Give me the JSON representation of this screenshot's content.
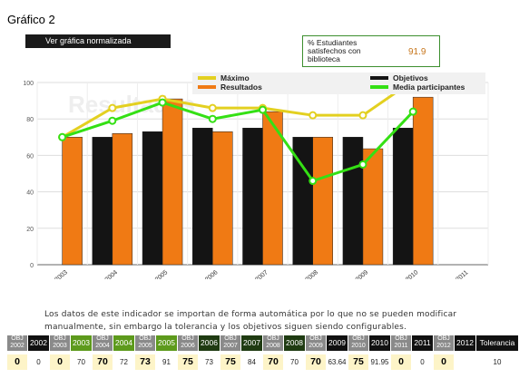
{
  "page": {
    "title": "Gráfico 2",
    "normalize_button": "Ver gráfica normalizada",
    "kpi_label": "% Estudiantes satisfechos con biblioteca",
    "kpi_value": "91.9",
    "note": "Los datos de este indicador se importan de forma automática por lo que no se pueden modificar manualmente, sin embargo la tolerancia y los objetivos siguen siendo configurables."
  },
  "chart_data": {
    "type": "bar",
    "watermark": "Resultados",
    "categories": [
      "2003",
      "2004",
      "2005",
      "2006",
      "2007",
      "2008",
      "2009",
      "2010",
      "2011"
    ],
    "ylim": [
      0,
      100
    ],
    "yticks": [
      0,
      20,
      40,
      60,
      80,
      100
    ],
    "grid": true,
    "legend_position": "top",
    "series": [
      {
        "name": "Objetivos",
        "kind": "bar",
        "color": "#141414",
        "values": [
          null,
          70,
          73,
          75,
          75,
          70,
          70,
          75,
          null
        ]
      },
      {
        "name": "Resultados",
        "kind": "bar",
        "color": "#f07a14",
        "values": [
          70,
          72,
          91,
          73,
          84,
          70,
          63.64,
          91.95,
          null
        ]
      },
      {
        "name": "Máximo",
        "kind": "line",
        "color": "#e3d020",
        "values": [
          70,
          86,
          91,
          86,
          86,
          82,
          82,
          101,
          null
        ]
      },
      {
        "name": "Media participantes",
        "kind": "line",
        "color": "#34e014",
        "values": [
          70,
          79,
          89,
          80,
          85,
          46,
          55,
          84,
          null
        ]
      }
    ]
  },
  "table": {
    "columns": [
      {
        "type": "obj",
        "label": "OBJ 2002",
        "value": "0"
      },
      {
        "type": "year",
        "label": "2002",
        "value": "0",
        "style": "yr-dark"
      },
      {
        "type": "obj",
        "label": "OBJ 2003",
        "value": "0"
      },
      {
        "type": "year",
        "label": "2003",
        "value": "70",
        "style": "yr-green"
      },
      {
        "type": "obj",
        "label": "OBJ 2004",
        "value": "70"
      },
      {
        "type": "year",
        "label": "2004",
        "value": "72",
        "style": "yr-green"
      },
      {
        "type": "obj",
        "label": "OBJ 2005",
        "value": "73"
      },
      {
        "type": "year",
        "label": "2005",
        "value": "91",
        "style": "yr-green"
      },
      {
        "type": "obj",
        "label": "OBJ 2006",
        "value": "75"
      },
      {
        "type": "year",
        "label": "2006",
        "value": "73",
        "style": "yr-deep"
      },
      {
        "type": "obj",
        "label": "OBJ 2007",
        "value": "75"
      },
      {
        "type": "year",
        "label": "2007",
        "value": "84",
        "style": "yr-deep"
      },
      {
        "type": "obj",
        "label": "OBJ 2008",
        "value": "70"
      },
      {
        "type": "year",
        "label": "2008",
        "value": "70",
        "style": "yr-deep"
      },
      {
        "type": "obj",
        "label": "OBJ 2009",
        "value": "70"
      },
      {
        "type": "year",
        "label": "2009",
        "value": "63.64",
        "style": "yr-dark"
      },
      {
        "type": "obj",
        "label": "OBJ 2010",
        "value": "75"
      },
      {
        "type": "year",
        "label": "2010",
        "value": "91.95",
        "style": "yr-dark"
      },
      {
        "type": "obj",
        "label": "OBJ 2011",
        "value": "0"
      },
      {
        "type": "year",
        "label": "2011",
        "value": "0",
        "style": "yr-dark"
      },
      {
        "type": "obj",
        "label": "OBJ 2012",
        "value": "0"
      },
      {
        "type": "year",
        "label": "2012",
        "value": "",
        "style": "yr-dark"
      },
      {
        "type": "tol",
        "label": "Tolerancia",
        "value": "10",
        "style": "yr-dark"
      }
    ]
  }
}
